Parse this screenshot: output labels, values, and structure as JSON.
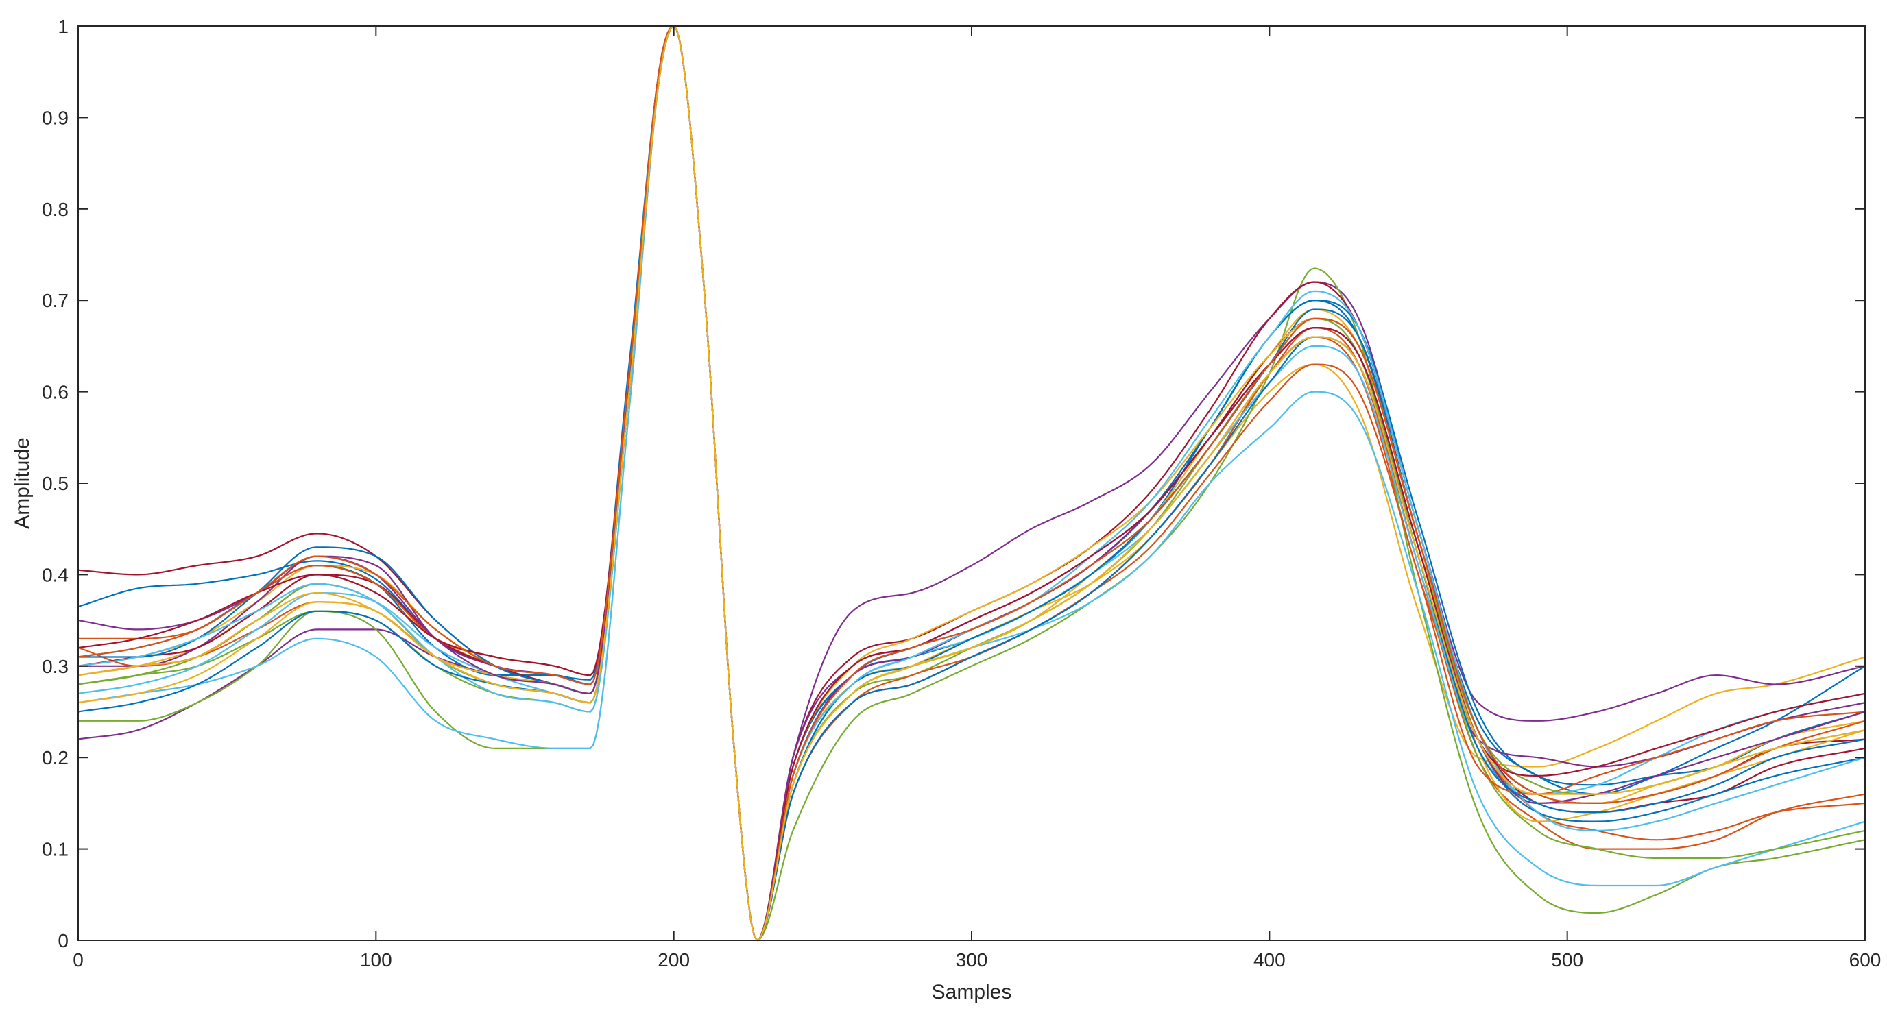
{
  "chart_data": {
    "type": "line",
    "title": "",
    "xlabel": "Samples",
    "ylabel": "Amplitude",
    "xlim": [
      0,
      600
    ],
    "ylim": [
      0,
      1
    ],
    "xticks": [
      0,
      100,
      200,
      300,
      400,
      500,
      600
    ],
    "xtick_labels": [
      "0",
      "100",
      "200",
      "300",
      "400",
      "500",
      "600"
    ],
    "yticks": [
      0,
      0.1,
      0.2,
      0.3,
      0.4,
      0.5,
      0.6,
      0.7,
      0.8,
      0.9,
      1
    ],
    "ytick_labels": [
      "0",
      "0.1",
      "0.2",
      "0.3",
      "0.4",
      "0.5",
      "0.6",
      "0.7",
      "0.8",
      "0.9",
      "1"
    ],
    "grid": false,
    "legend": "none",
    "colors": [
      "#0072BD",
      "#D95319",
      "#EDB120",
      "#7E2F8E",
      "#77AC30",
      "#4DBEEE",
      "#A2142F"
    ],
    "x": [
      0,
      20,
      40,
      60,
      80,
      100,
      120,
      140,
      160,
      172,
      185,
      195,
      200,
      210,
      220,
      228,
      240,
      260,
      280,
      300,
      320,
      340,
      360,
      380,
      400,
      415,
      430,
      450,
      470,
      490,
      510,
      530,
      550,
      570,
      600
    ],
    "template": [
      0.3,
      0.31,
      0.33,
      0.37,
      0.4,
      0.38,
      0.32,
      0.29,
      0.28,
      0.28,
      0.62,
      0.95,
      1.0,
      0.72,
      0.22,
      0.0,
      0.18,
      0.28,
      0.31,
      0.33,
      0.36,
      0.4,
      0.45,
      0.53,
      0.62,
      0.68,
      0.64,
      0.42,
      0.24,
      0.17,
      0.16,
      0.17,
      0.19,
      0.21,
      0.23
    ],
    "series": [
      {
        "values": [
          0.365,
          0.385,
          0.39,
          0.4,
          0.415,
          0.395,
          0.33,
          0.3,
          0.29,
          0.285,
          0.63,
          0.95,
          1.0,
          0.72,
          0.22,
          0.0,
          0.19,
          0.29,
          0.31,
          0.33,
          0.36,
          0.4,
          0.46,
          0.56,
          0.66,
          0.7,
          0.66,
          0.44,
          0.24,
          0.18,
          0.16,
          0.18,
          0.21,
          0.24,
          0.3
        ]
      },
      {
        "values": [
          0.29,
          0.3,
          0.31,
          0.35,
          0.39,
          0.37,
          0.31,
          0.28,
          0.27,
          0.26,
          0.6,
          0.94,
          1.0,
          0.72,
          0.22,
          0.0,
          0.16,
          0.26,
          0.28,
          0.31,
          0.34,
          0.38,
          0.44,
          0.52,
          0.62,
          0.66,
          0.62,
          0.4,
          0.22,
          0.14,
          0.12,
          0.11,
          0.12,
          0.14,
          0.15
        ]
      },
      {
        "values": [
          0.3,
          0.31,
          0.33,
          0.37,
          0.41,
          0.4,
          0.34,
          0.3,
          0.28,
          0.27,
          0.61,
          0.95,
          1.0,
          0.72,
          0.22,
          0.0,
          0.17,
          0.27,
          0.3,
          0.33,
          0.36,
          0.39,
          0.44,
          0.52,
          0.6,
          0.63,
          0.58,
          0.36,
          0.2,
          0.19,
          0.21,
          0.24,
          0.27,
          0.28,
          0.31
        ]
      },
      {
        "values": [
          0.22,
          0.23,
          0.26,
          0.3,
          0.34,
          0.34,
          0.31,
          0.29,
          0.28,
          0.27,
          0.61,
          0.95,
          1.0,
          0.72,
          0.22,
          0.0,
          0.2,
          0.36,
          0.38,
          0.41,
          0.45,
          0.48,
          0.52,
          0.6,
          0.68,
          0.72,
          0.68,
          0.45,
          0.26,
          0.24,
          0.25,
          0.27,
          0.29,
          0.28,
          0.3
        ]
      },
      {
        "values": [
          0.24,
          0.24,
          0.26,
          0.3,
          0.36,
          0.34,
          0.25,
          0.21,
          0.21,
          0.21,
          0.58,
          0.94,
          1.0,
          0.72,
          0.22,
          0.0,
          0.12,
          0.24,
          0.27,
          0.3,
          0.33,
          0.37,
          0.42,
          0.5,
          0.62,
          0.735,
          0.66,
          0.38,
          0.14,
          0.05,
          0.03,
          0.05,
          0.08,
          0.09,
          0.11
        ]
      },
      {
        "values": [
          0.26,
          0.27,
          0.28,
          0.3,
          0.33,
          0.31,
          0.24,
          0.22,
          0.21,
          0.21,
          0.58,
          0.94,
          1.0,
          0.72,
          0.22,
          0.0,
          0.17,
          0.28,
          0.3,
          0.32,
          0.34,
          0.37,
          0.42,
          0.5,
          0.56,
          0.6,
          0.57,
          0.38,
          0.16,
          0.08,
          0.06,
          0.06,
          0.08,
          0.1,
          0.13
        ]
      },
      {
        "values": [
          0.405,
          0.4,
          0.41,
          0.42,
          0.445,
          0.42,
          0.35,
          0.3,
          0.28,
          0.27,
          0.61,
          0.95,
          1.0,
          0.72,
          0.22,
          0.0,
          0.2,
          0.31,
          0.33,
          0.36,
          0.39,
          0.43,
          0.49,
          0.58,
          0.68,
          0.72,
          0.67,
          0.45,
          0.23,
          0.16,
          0.15,
          0.16,
          0.18,
          0.21,
          0.22
        ]
      },
      {
        "values": [
          0.31,
          0.32,
          0.34,
          0.38,
          0.41,
          0.39,
          0.32,
          0.29,
          0.29,
          0.28,
          0.62,
          0.95,
          1.0,
          0.72,
          0.22,
          0.0,
          0.19,
          0.29,
          0.32,
          0.34,
          0.37,
          0.41,
          0.47,
          0.56,
          0.66,
          0.7,
          0.67,
          0.46,
          0.25,
          0.18,
          0.17,
          0.18,
          0.19,
          0.22,
          0.25
        ]
      },
      {
        "values": [
          0.32,
          0.3,
          0.31,
          0.34,
          0.37,
          0.36,
          0.31,
          0.28,
          0.27,
          0.26,
          0.6,
          0.94,
          1.0,
          0.72,
          0.22,
          0.0,
          0.16,
          0.26,
          0.28,
          0.31,
          0.34,
          0.38,
          0.44,
          0.52,
          0.62,
          0.67,
          0.63,
          0.41,
          0.2,
          0.13,
          0.1,
          0.1,
          0.11,
          0.14,
          0.16
        ]
      },
      {
        "values": [
          0.29,
          0.3,
          0.32,
          0.36,
          0.4,
          0.38,
          0.33,
          0.3,
          0.28,
          0.27,
          0.61,
          0.95,
          1.0,
          0.72,
          0.22,
          0.0,
          0.18,
          0.28,
          0.3,
          0.32,
          0.35,
          0.4,
          0.46,
          0.55,
          0.64,
          0.69,
          0.65,
          0.44,
          0.21,
          0.13,
          0.14,
          0.16,
          0.18,
          0.2,
          0.23
        ]
      },
      {
        "values": [
          0.3,
          0.3,
          0.32,
          0.37,
          0.42,
          0.41,
          0.33,
          0.3,
          0.29,
          0.28,
          0.62,
          0.95,
          1.0,
          0.72,
          0.22,
          0.0,
          0.2,
          0.3,
          0.32,
          0.35,
          0.38,
          0.42,
          0.47,
          0.55,
          0.63,
          0.67,
          0.64,
          0.42,
          0.22,
          0.2,
          0.19,
          0.2,
          0.22,
          0.24,
          0.26
        ]
      },
      {
        "values": [
          0.28,
          0.29,
          0.3,
          0.33,
          0.36,
          0.35,
          0.3,
          0.27,
          0.26,
          0.25,
          0.6,
          0.94,
          1.0,
          0.72,
          0.22,
          0.0,
          0.17,
          0.27,
          0.29,
          0.32,
          0.35,
          0.39,
          0.45,
          0.54,
          0.63,
          0.68,
          0.64,
          0.42,
          0.2,
          0.12,
          0.1,
          0.09,
          0.09,
          0.1,
          0.12
        ]
      },
      {
        "values": [
          0.27,
          0.28,
          0.3,
          0.34,
          0.38,
          0.37,
          0.32,
          0.29,
          0.27,
          0.26,
          0.61,
          0.95,
          1.0,
          0.72,
          0.22,
          0.0,
          0.18,
          0.28,
          0.31,
          0.33,
          0.36,
          0.4,
          0.45,
          0.53,
          0.61,
          0.65,
          0.62,
          0.41,
          0.21,
          0.16,
          0.17,
          0.2,
          0.23,
          0.25,
          0.27
        ]
      },
      {
        "values": [
          0.3,
          0.31,
          0.32,
          0.36,
          0.4,
          0.39,
          0.33,
          0.3,
          0.28,
          0.27,
          0.61,
          0.95,
          1.0,
          0.72,
          0.22,
          0.0,
          0.18,
          0.29,
          0.31,
          0.34,
          0.37,
          0.41,
          0.47,
          0.55,
          0.64,
          0.68,
          0.65,
          0.44,
          0.23,
          0.15,
          0.14,
          0.15,
          0.16,
          0.19,
          0.21
        ]
      },
      {
        "values": [
          0.31,
          0.31,
          0.33,
          0.38,
          0.43,
          0.42,
          0.35,
          0.3,
          0.28,
          0.27,
          0.62,
          0.95,
          1.0,
          0.72,
          0.22,
          0.0,
          0.17,
          0.28,
          0.3,
          0.33,
          0.36,
          0.4,
          0.46,
          0.54,
          0.63,
          0.69,
          0.66,
          0.44,
          0.22,
          0.14,
          0.13,
          0.14,
          0.16,
          0.18,
          0.2
        ]
      },
      {
        "values": [
          0.33,
          0.33,
          0.34,
          0.38,
          0.41,
          0.39,
          0.33,
          0.31,
          0.3,
          0.29,
          0.62,
          0.95,
          1.0,
          0.72,
          0.22,
          0.0,
          0.16,
          0.26,
          0.29,
          0.31,
          0.34,
          0.38,
          0.43,
          0.51,
          0.59,
          0.63,
          0.6,
          0.4,
          0.19,
          0.16,
          0.18,
          0.2,
          0.22,
          0.24,
          0.25
        ]
      },
      {
        "values": [
          0.26,
          0.27,
          0.29,
          0.33,
          0.37,
          0.36,
          0.31,
          0.29,
          0.28,
          0.27,
          0.61,
          0.95,
          1.0,
          0.72,
          0.22,
          0.0,
          0.19,
          0.3,
          0.33,
          0.36,
          0.39,
          0.43,
          0.48,
          0.56,
          0.64,
          0.68,
          0.65,
          0.44,
          0.22,
          0.15,
          0.15,
          0.17,
          0.19,
          0.22,
          0.24
        ]
      },
      {
        "values": [
          0.35,
          0.34,
          0.35,
          0.38,
          0.42,
          0.4,
          0.33,
          0.29,
          0.28,
          0.27,
          0.61,
          0.95,
          1.0,
          0.72,
          0.22,
          0.0,
          0.18,
          0.29,
          0.31,
          0.34,
          0.37,
          0.41,
          0.47,
          0.55,
          0.63,
          0.67,
          0.64,
          0.43,
          0.22,
          0.15,
          0.16,
          0.18,
          0.2,
          0.22,
          0.25
        ]
      },
      {
        "values": [
          0.28,
          0.29,
          0.31,
          0.35,
          0.39,
          0.37,
          0.31,
          0.28,
          0.27,
          0.26,
          0.6,
          0.94,
          1.0,
          0.72,
          0.22,
          0.0,
          0.17,
          0.27,
          0.3,
          0.32,
          0.35,
          0.39,
          0.45,
          0.53,
          0.62,
          0.66,
          0.63,
          0.43,
          0.23,
          0.17,
          0.16,
          0.17,
          0.19,
          0.21,
          0.23
        ]
      },
      {
        "values": [
          0.3,
          0.31,
          0.33,
          0.36,
          0.39,
          0.37,
          0.31,
          0.27,
          0.26,
          0.25,
          0.6,
          0.94,
          1.0,
          0.72,
          0.22,
          0.0,
          0.18,
          0.28,
          0.31,
          0.34,
          0.37,
          0.42,
          0.48,
          0.57,
          0.66,
          0.71,
          0.67,
          0.45,
          0.23,
          0.14,
          0.12,
          0.13,
          0.15,
          0.17,
          0.2
        ]
      },
      {
        "values": [
          0.32,
          0.33,
          0.35,
          0.38,
          0.4,
          0.38,
          0.33,
          0.31,
          0.3,
          0.29,
          0.62,
          0.95,
          1.0,
          0.72,
          0.22,
          0.0,
          0.19,
          0.3,
          0.32,
          0.35,
          0.38,
          0.42,
          0.47,
          0.55,
          0.63,
          0.67,
          0.64,
          0.43,
          0.22,
          0.18,
          0.19,
          0.21,
          0.23,
          0.25,
          0.27
        ]
      },
      {
        "values": [
          0.25,
          0.26,
          0.28,
          0.32,
          0.36,
          0.35,
          0.3,
          0.28,
          0.27,
          0.26,
          0.6,
          0.94,
          1.0,
          0.72,
          0.22,
          0.0,
          0.16,
          0.26,
          0.28,
          0.31,
          0.34,
          0.38,
          0.44,
          0.52,
          0.61,
          0.66,
          0.63,
          0.42,
          0.21,
          0.15,
          0.14,
          0.15,
          0.17,
          0.2,
          0.22
        ]
      },
      {
        "values": [
          0.31,
          0.32,
          0.34,
          0.38,
          0.42,
          0.4,
          0.34,
          0.3,
          0.29,
          0.28,
          0.62,
          0.95,
          1.0,
          0.72,
          0.22,
          0.0,
          0.18,
          0.29,
          0.32,
          0.34,
          0.37,
          0.41,
          0.46,
          0.54,
          0.63,
          0.68,
          0.65,
          0.44,
          0.23,
          0.16,
          0.15,
          0.16,
          0.18,
          0.21,
          0.24
        ]
      },
      {
        "values": [
          0.29,
          0.3,
          0.31,
          0.35,
          0.38,
          0.36,
          0.31,
          0.28,
          0.27,
          0.26,
          0.6,
          0.94,
          1.0,
          0.72,
          0.22,
          0.0,
          0.17,
          0.27,
          0.3,
          0.32,
          0.35,
          0.39,
          0.45,
          0.53,
          0.62,
          0.66,
          0.63,
          0.42,
          0.22,
          0.16,
          0.16,
          0.17,
          0.19,
          0.21,
          0.23
        ]
      }
    ]
  }
}
